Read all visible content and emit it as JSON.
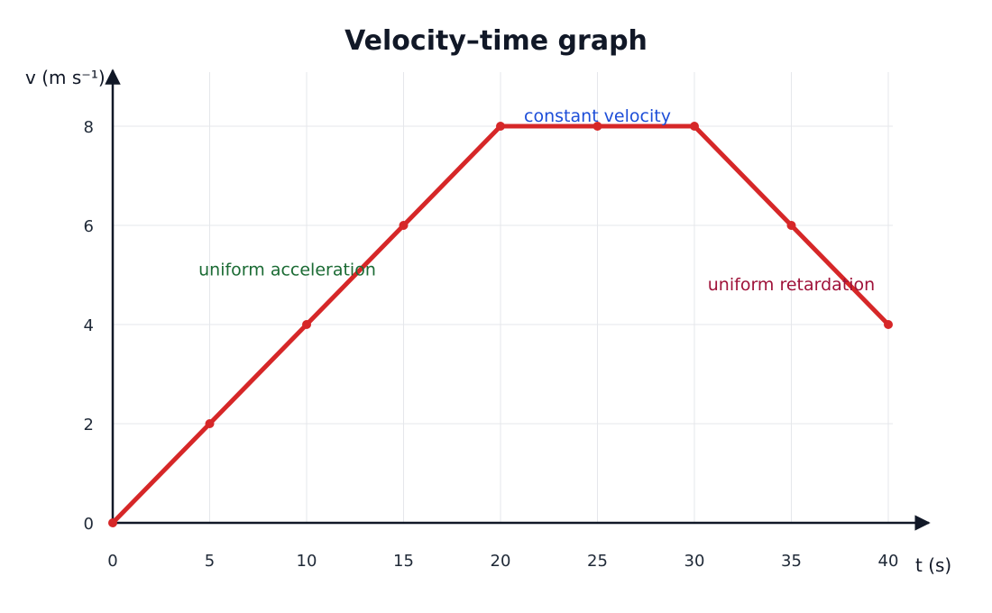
{
  "chart_data": {
    "type": "line",
    "title": "Velocity–time graph",
    "xlabel": "t (s)",
    "ylabel": "v (m s⁻¹)",
    "xlim": [
      0,
      40
    ],
    "ylim": [
      0,
      8
    ],
    "x_ticks": [
      0,
      5,
      10,
      15,
      20,
      25,
      30,
      35,
      40
    ],
    "y_ticks": [
      0,
      2,
      4,
      6,
      8
    ],
    "grid": true,
    "series": [
      {
        "x": [
          0,
          5,
          10,
          15,
          20,
          25,
          30,
          35,
          40
        ],
        "y": [
          0,
          2,
          4,
          6,
          8,
          8,
          8,
          6,
          4
        ],
        "color": "#d62728"
      }
    ],
    "annotations": [
      {
        "text": "uniform acceleration",
        "x": 9.0,
        "y": 5.1,
        "color": "#1b6b34"
      },
      {
        "text": "constant velocity",
        "x": 25,
        "y": 8.2,
        "color": "#1d4ed8"
      },
      {
        "text": "uniform retardation",
        "x": 35,
        "y": 4.8,
        "color": "#9f1239"
      }
    ]
  }
}
